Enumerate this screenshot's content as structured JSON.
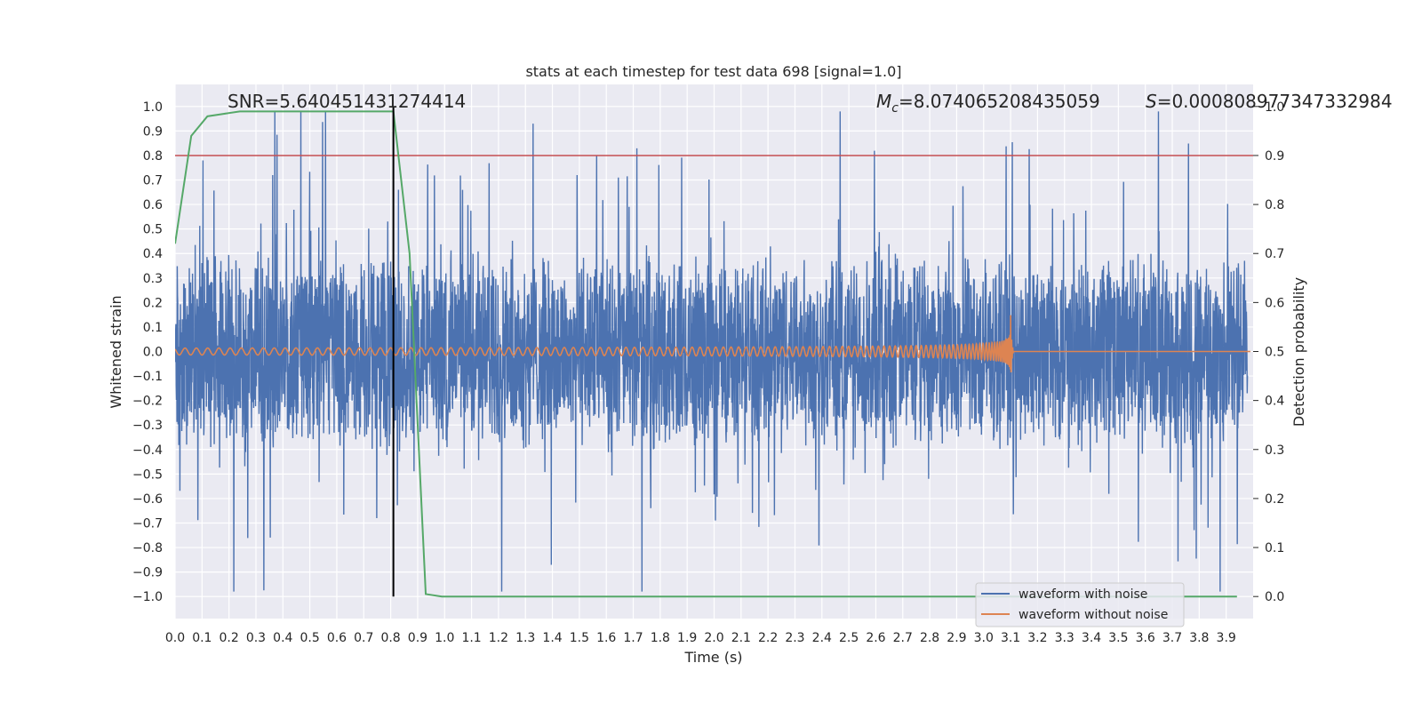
{
  "chart_data": {
    "type": "line",
    "title": "stats at each timestep for test data 698 [signal=1.0]",
    "xlabel": "Time (s)",
    "ylabel": "Whitened strain",
    "y2label": "Detection probability",
    "xlim": [
      0.0,
      4.0
    ],
    "ylim": [
      -1.09,
      1.09
    ],
    "y2lim": [
      -0.045,
      1.045
    ],
    "grid": true,
    "legend_position": "lower-right",
    "colors": {
      "background": "#eaeaf2",
      "grid": "#ffffff",
      "noisy": "#4c72b0",
      "clean": "#dd8452",
      "probability": "#55a868",
      "threshold": "#c44e52",
      "marker": "#000000"
    },
    "annotations": {
      "snr": "SNR=5.640451431274414",
      "mc_symbol": "M",
      "mc_sub": "c",
      "mc_value": "=8.074065208435059",
      "s_symbol": "S",
      "s_value": "=0.000808977347332984"
    },
    "x_ticks": [
      "0.0",
      "0.1",
      "0.2",
      "0.3",
      "0.4",
      "0.5",
      "0.6",
      "0.7",
      "0.8",
      "0.9",
      "1.0",
      "1.1",
      "1.2",
      "1.3",
      "1.4",
      "1.5",
      "1.6",
      "1.7",
      "1.8",
      "1.9",
      "2.0",
      "2.1",
      "2.2",
      "2.3",
      "2.4",
      "2.5",
      "2.6",
      "2.7",
      "2.8",
      "2.9",
      "3.0",
      "3.1",
      "3.2",
      "3.3",
      "3.4",
      "3.5",
      "3.6",
      "3.7",
      "3.8",
      "3.9"
    ],
    "y_ticks": [
      "1.0",
      "0.9",
      "0.8",
      "0.7",
      "0.6",
      "0.5",
      "0.4",
      "0.3",
      "0.2",
      "0.1",
      "0.0",
      "−0.1",
      "−0.2",
      "−0.3",
      "−0.4",
      "−0.5",
      "−0.6",
      "−0.7",
      "−0.8",
      "−0.9",
      "−1.0"
    ],
    "y2_ticks": [
      "1.0",
      "0.9",
      "0.8",
      "0.7",
      "0.6",
      "0.5",
      "0.4",
      "0.3",
      "0.2",
      "0.1",
      "0.0"
    ],
    "threshold_probability": 0.9,
    "marker_time": 0.81,
    "series": [
      {
        "name": "waveform with noise",
        "kind": "noise",
        "samples": 4000,
        "amplitude_range": [
          -0.98,
          0.98
        ]
      },
      {
        "name": "waveform without noise",
        "kind": "chirp",
        "merger_time": 3.1,
        "amplitude_start": 0.014,
        "amplitude_peak": 0.17
      },
      {
        "name": "",
        "kind": "probability",
        "x": [
          0.0,
          0.06,
          0.12,
          0.18,
          0.24,
          0.3,
          0.4,
          0.5,
          0.6,
          0.7,
          0.81,
          0.87,
          0.93,
          0.99,
          1.05,
          1.5,
          2.0,
          2.5,
          3.0,
          3.5,
          3.94
        ],
        "y": [
          0.72,
          0.94,
          0.98,
          0.985,
          0.99,
          0.99,
          0.99,
          0.99,
          0.99,
          0.99,
          0.99,
          0.7,
          0.005,
          0.0,
          0.0,
          0.0,
          0.0,
          0.0,
          0.0,
          0.0,
          0.0
        ]
      }
    ]
  }
}
